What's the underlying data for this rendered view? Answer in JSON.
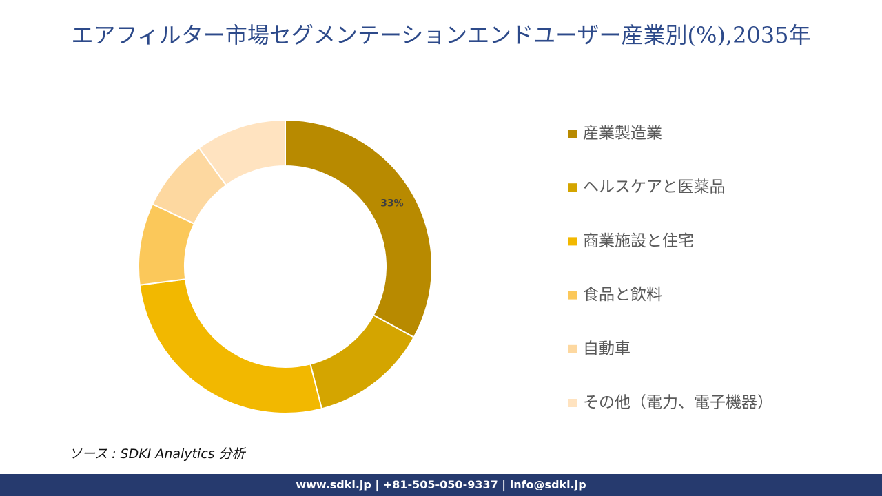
{
  "chart_data": {
    "type": "donut",
    "title": "エアフィルター市場セグメンテーションエンドユーザー産業別(%),2035年",
    "categories": [
      "産業製造業",
      "ヘルスケアと医薬品",
      "商業施設と住宅",
      "食品と飲料",
      "自動車",
      "その他（電力、電子機器）"
    ],
    "values": [
      33,
      13,
      27,
      9,
      8,
      10
    ],
    "value_labels": [
      "33%",
      null,
      null,
      null,
      null,
      null
    ],
    "colors": [
      "#b88a00",
      "#d4a500",
      "#f2b800",
      "#fbc85a",
      "#fdd8a0",
      "#ffe3c0"
    ],
    "legend": "right"
  },
  "source": "ソース : SDKI Analytics 分析",
  "footer": "www.sdki.jp | +81-505-050-9337 | info@sdki.jp"
}
